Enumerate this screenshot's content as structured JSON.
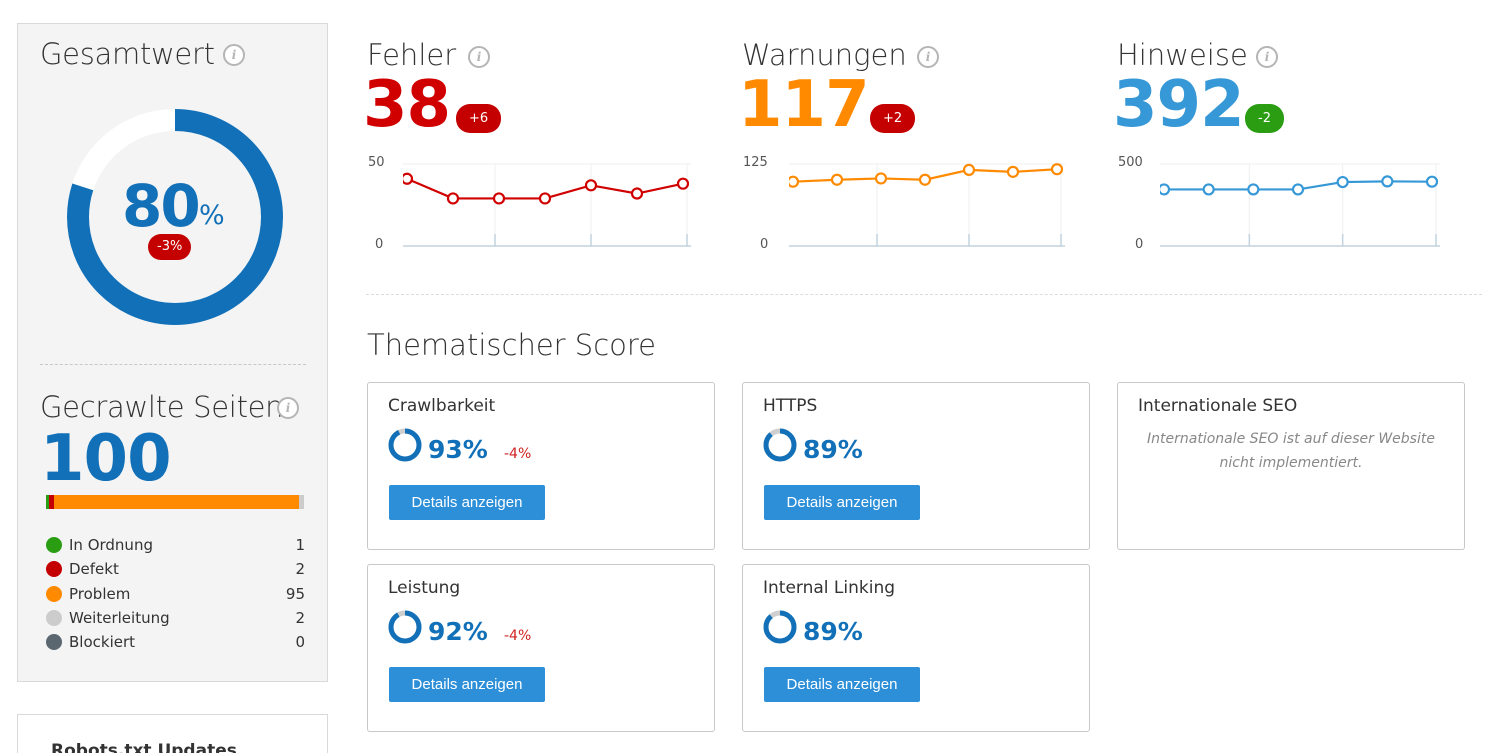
{
  "overall": {
    "title": "Gesamtwert",
    "score_value": "80",
    "score_unit": "%",
    "score_fraction": 0.8,
    "delta": "-3%",
    "colors": {
      "ring": "#1170b8",
      "track": "#ffffff",
      "badge": "#c40000"
    }
  },
  "crawled": {
    "title": "Gecrawlte Seiten",
    "count": "100",
    "legend": [
      {
        "label": "In Ordnung",
        "count": "1",
        "color": "#2a9d13"
      },
      {
        "label": "Defekt",
        "count": "2",
        "color": "#c40000"
      },
      {
        "label": "Problem",
        "count": "95",
        "color": "#ff8a00"
      },
      {
        "label": "Weiterleitung",
        "count": "2",
        "color": "#cccccc"
      },
      {
        "label": "Blockiert",
        "count": "0",
        "color": "#5b6770"
      }
    ]
  },
  "robots": {
    "title": "Robots.txt Updates"
  },
  "metrics": [
    {
      "title": "Fehler",
      "value": "38",
      "delta": "+6",
      "delta_color": "#c40000",
      "color": "#d10000",
      "chart_data": {
        "type": "line",
        "y_max_label": "50",
        "y_min_label": "0",
        "ylim": [
          0,
          50
        ],
        "values": [
          41,
          29,
          29,
          29,
          37,
          32,
          38
        ]
      }
    },
    {
      "title": "Warnungen",
      "value": "117",
      "delta": "+2",
      "delta_color": "#c40000",
      "color": "#ff8a00",
      "chart_data": {
        "type": "line",
        "y_max_label": "125",
        "y_min_label": "0",
        "ylim": [
          0,
          125
        ],
        "values": [
          98,
          101,
          103,
          101,
          116,
          113,
          117
        ]
      }
    },
    {
      "title": "Hinweise",
      "value": "392",
      "delta": "-2",
      "delta_color": "#2a9d13",
      "color": "#3698d6",
      "chart_data": {
        "type": "line",
        "y_max_label": "500",
        "y_min_label": "0",
        "ylim": [
          0,
          500
        ],
        "values": [
          345,
          345,
          345,
          345,
          390,
          394,
          392
        ]
      }
    }
  ],
  "thematic": {
    "title": "Thematischer Score",
    "cards": [
      {
        "title": "Crawlbarkeit",
        "pct": "93%",
        "fraction": 0.93,
        "delta": "-4%",
        "button": "Details anzeigen"
      },
      {
        "title": "HTTPS",
        "pct": "89%",
        "fraction": 0.89,
        "delta": "",
        "button": "Details anzeigen"
      },
      {
        "title": "Internationale SEO",
        "note": "Internationale SEO ist auf dieser Website nicht implementiert."
      },
      {
        "title": "Leistung",
        "pct": "92%",
        "fraction": 0.92,
        "delta": "-4%",
        "button": "Details anzeigen"
      },
      {
        "title": "Internal Linking",
        "pct": "89%",
        "fraction": 0.89,
        "delta": "",
        "button": "Details anzeigen"
      }
    ]
  }
}
